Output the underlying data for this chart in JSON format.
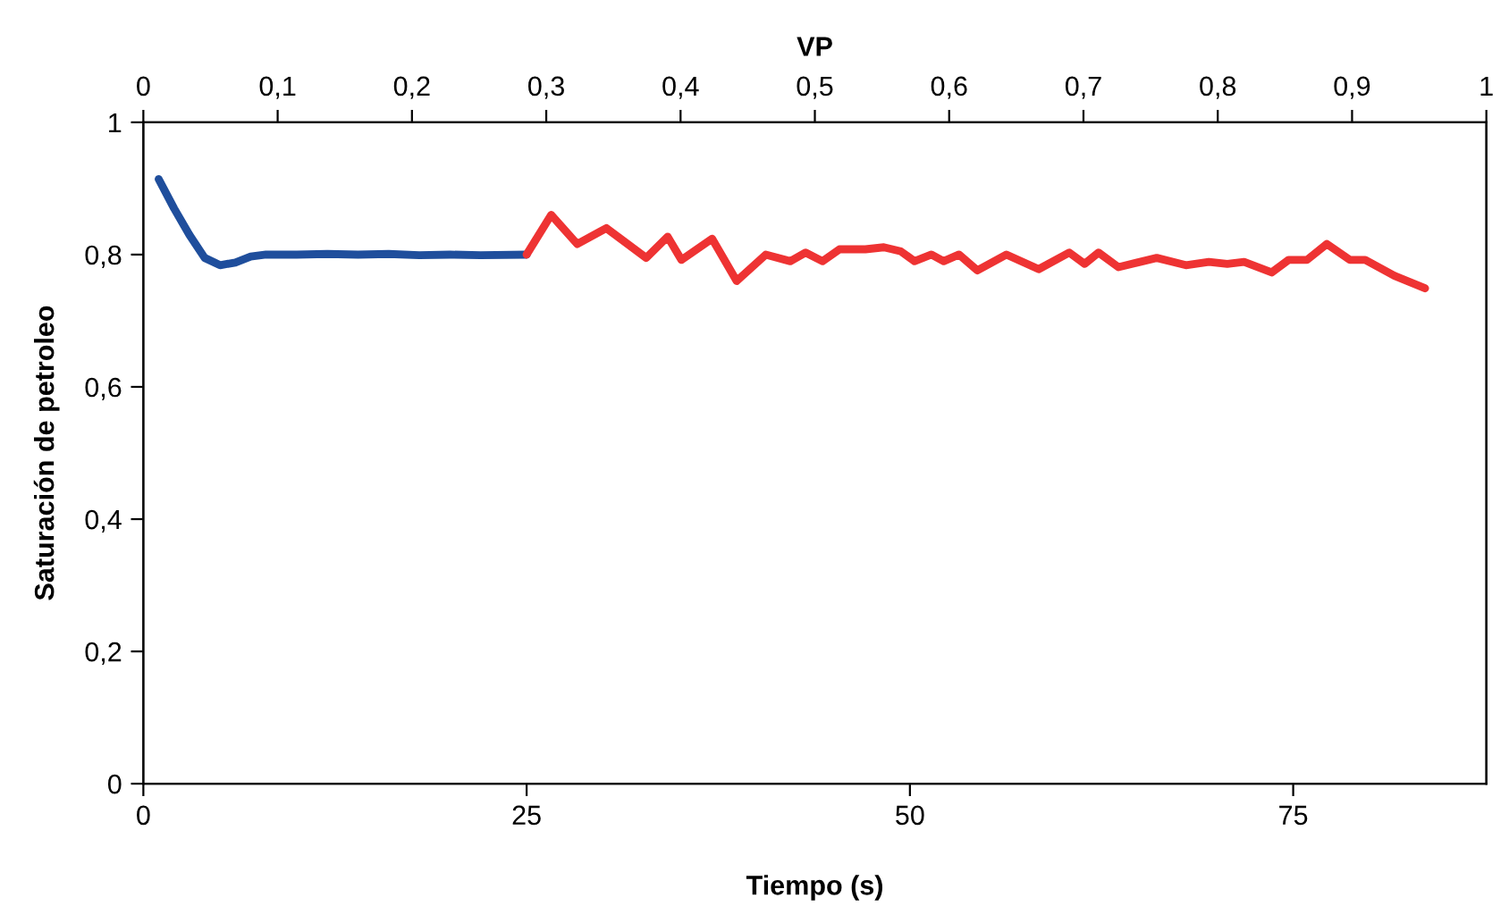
{
  "chart_data": {
    "type": "line",
    "xlabel": "Tiempo (s)",
    "ylabel": "Saturación de petroleo",
    "x2label": "VP",
    "xlim": [
      0,
      87.6
    ],
    "xticks": [
      0,
      25,
      50,
      75
    ],
    "ylim": [
      0,
      1
    ],
    "yticks": [
      0,
      {
        "value": 0.2,
        "label": "0,2"
      },
      {
        "value": 0.4,
        "label": "0,4"
      },
      {
        "value": 0.6,
        "label": "0,6"
      },
      {
        "value": 0.8,
        "label": "0,8"
      },
      1
    ],
    "x2lim": [
      0,
      1
    ],
    "x2ticks": [
      0,
      {
        "value": 0.1,
        "label": "0,1"
      },
      {
        "value": 0.2,
        "label": "0,2"
      },
      {
        "value": 0.3,
        "label": "0,3"
      },
      {
        "value": 0.4,
        "label": "0,4"
      },
      {
        "value": 0.5,
        "label": "0,5"
      },
      {
        "value": 0.6,
        "label": "0,6"
      },
      {
        "value": 0.7,
        "label": "0,7"
      },
      {
        "value": 0.8,
        "label": "0,8"
      },
      {
        "value": 0.9,
        "label": "0,9"
      },
      1
    ],
    "grid": false,
    "legend": false,
    "marker": "none",
    "line_style": "solid",
    "series": [
      {
        "color": "#1f4e9c",
        "x": [
          1,
          2,
          3,
          4,
          5,
          6,
          7,
          8,
          10,
          12,
          14,
          16,
          18,
          20,
          22,
          25
        ],
        "values": [
          0.914,
          0.87,
          0.83,
          0.795,
          0.784,
          0.788,
          0.797,
          0.8,
          0.8,
          0.801,
          0.8,
          0.801,
          0.799,
          0.8,
          0.799,
          0.8
        ]
      },
      {
        "color": "#ee3333",
        "x": [
          25,
          26.6,
          28.3,
          30.2,
          32.8,
          34.2,
          35.1,
          37.1,
          38.7,
          40.6,
          42.2,
          43.2,
          44.3,
          45.4,
          47.1,
          48.3,
          49.4,
          50.3,
          51.4,
          52.2,
          53.2,
          54.4,
          56.3,
          58.4,
          60.4,
          61.4,
          62.3,
          63.6,
          66.1,
          68.0,
          69.5,
          70.7,
          71.8,
          73.6,
          74.7,
          75.9,
          77.2,
          78.7,
          79.7,
          81.6,
          83.6
        ],
        "values": [
          0.8,
          0.86,
          0.816,
          0.84,
          0.795,
          0.827,
          0.792,
          0.824,
          0.76,
          0.8,
          0.79,
          0.803,
          0.79,
          0.808,
          0.808,
          0.811,
          0.805,
          0.79,
          0.8,
          0.79,
          0.8,
          0.776,
          0.8,
          0.778,
          0.803,
          0.786,
          0.803,
          0.781,
          0.795,
          0.784,
          0.789,
          0.786,
          0.789,
          0.773,
          0.792,
          0.792,
          0.816,
          0.792,
          0.792,
          0.768,
          0.749
        ]
      }
    ]
  }
}
